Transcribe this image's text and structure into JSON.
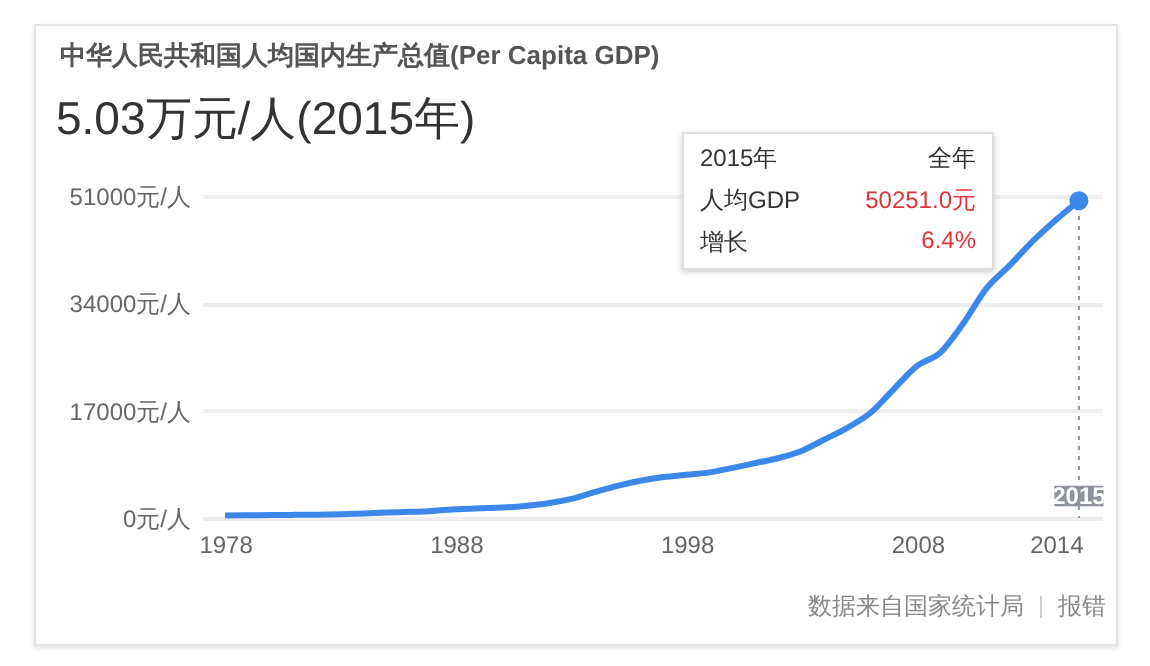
{
  "chart_data": {
    "type": "line",
    "title": "中华人民共和国人均国内生产总值(Per Capita GDP)",
    "subtitle": "5.03万元/人(2015年)",
    "x": [
      1978,
      1979,
      1980,
      1981,
      1982,
      1983,
      1984,
      1985,
      1986,
      1987,
      1988,
      1989,
      1990,
      1991,
      1992,
      1993,
      1994,
      1995,
      1996,
      1997,
      1998,
      1999,
      2000,
      2001,
      2002,
      2003,
      2004,
      2005,
      2006,
      2007,
      2008,
      2009,
      2010,
      2011,
      2012,
      2013,
      2014,
      2015
    ],
    "series": [
      {
        "color": "#3b87ea",
        "marker": "none",
        "values": [
          385,
          423,
          468,
          497,
          533,
          588,
          702,
          866,
          973,
          1123,
          1378,
          1536,
          1663,
          1912,
          2334,
          3027,
          4081,
          5091,
          5898,
          6481,
          6860,
          7229,
          7942,
          8717,
          9506,
          10666,
          12487,
          14368,
          16738,
          20505,
          24121,
          26222,
          30876,
          36403,
          40007,
          43852,
          47203,
          50251
        ]
      },
      {
        "type": "scatter",
        "color": "#3b87ea",
        "marker": "circle",
        "x": [
          2015
        ],
        "values": [
          50251
        ]
      }
    ],
    "xlim": [
      1977,
      2016
    ],
    "xticks": [
      1978,
      1988,
      1998,
      2008,
      2014
    ],
    "ylim": [
      0,
      51000
    ],
    "yticks": [
      {
        "value": 0,
        "label": "0元/人"
      },
      {
        "value": 17000,
        "label": "17000元/人"
      },
      {
        "value": 34000,
        "label": "34000元/人"
      },
      {
        "value": 51000,
        "label": "51000元/人"
      }
    ],
    "grid": "y",
    "ref_lines": [
      {
        "axis": "x",
        "value": 2015,
        "label": "2015",
        "color": "#8e929a",
        "line_style": "dotted"
      }
    ],
    "annotations": [
      "2015年",
      "全年",
      "人均GDP",
      "50251.0元",
      "增长",
      "6.4%",
      "数据来自国家统计局",
      "报错"
    ]
  }
}
